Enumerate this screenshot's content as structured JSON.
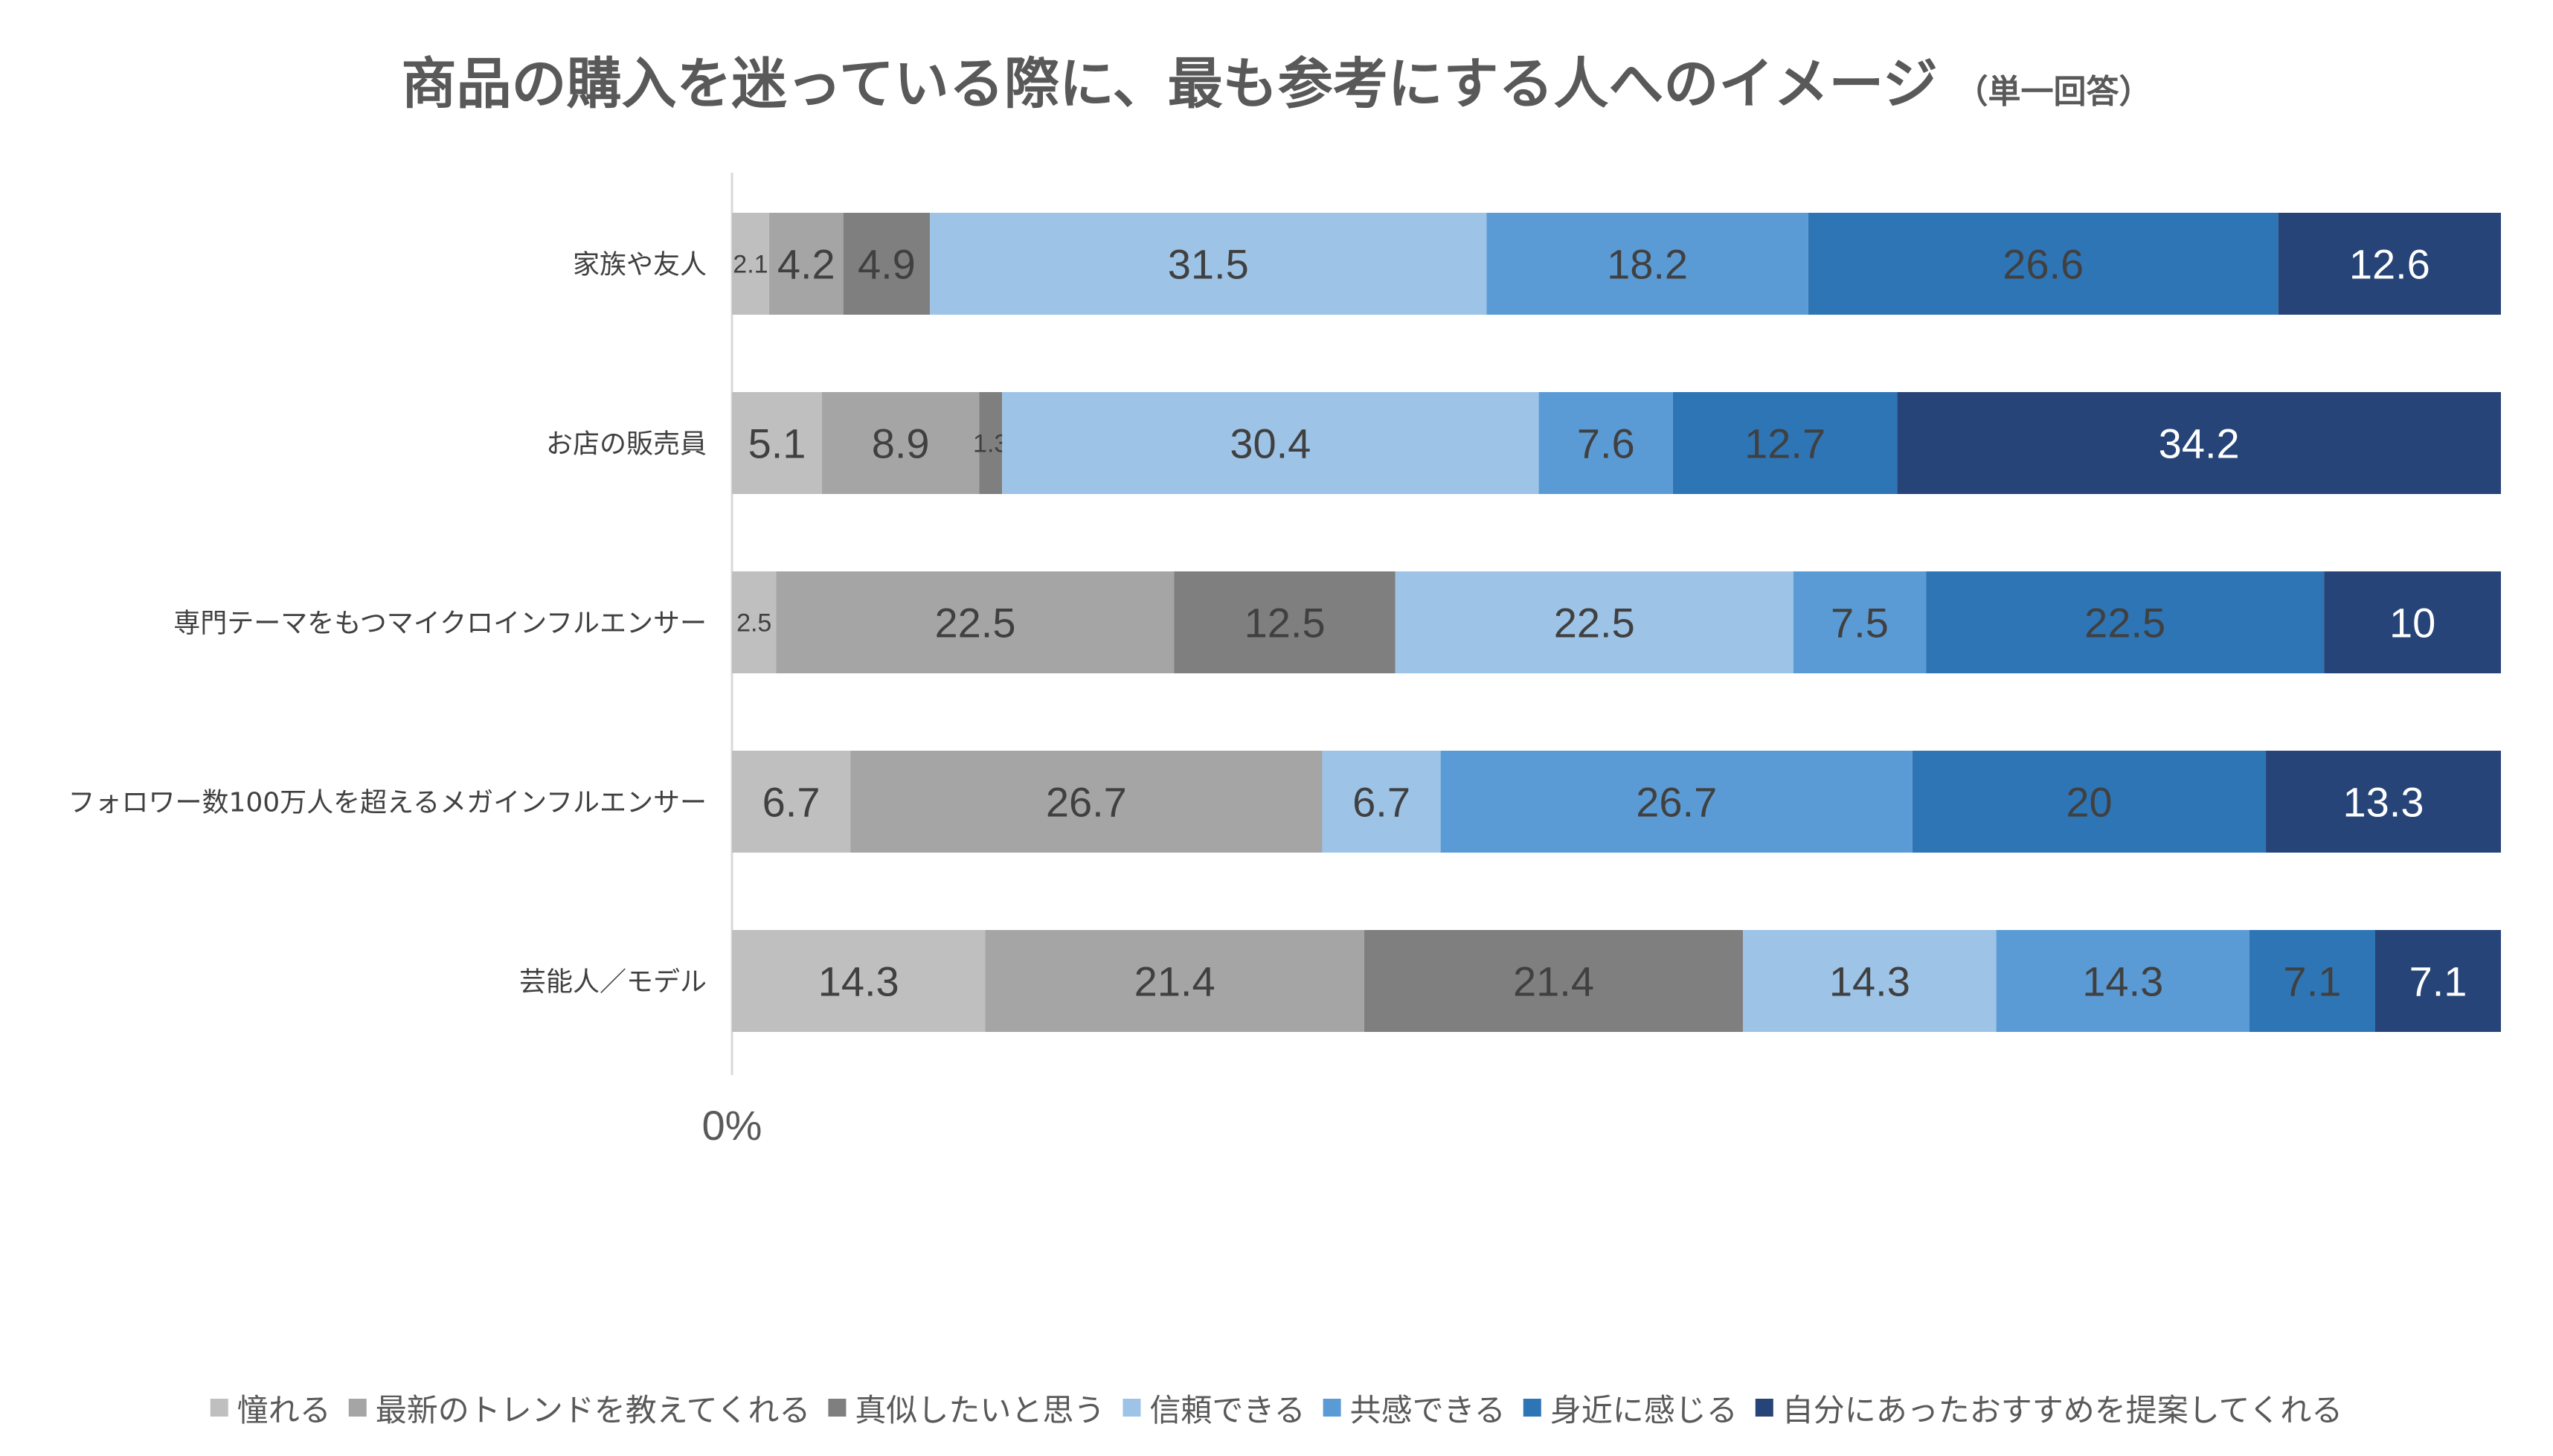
{
  "chart_data": {
    "type": "bar",
    "orientation": "horizontal",
    "stacked": true,
    "title": "商品の購入を迷っている際に、最も参考にする人へのイメージ",
    "subtitle": "（単一回答）",
    "xlabel": "",
    "ylabel": "",
    "xlim": [
      0,
      100
    ],
    "x_ticks": [
      "0%"
    ],
    "grid": false,
    "legend_position": "bottom",
    "categories": [
      "家族や友人",
      "お店の販売員",
      "専門テーマをもつマイクロインフルエンサー",
      "フォロワー数100万人を超えるメガインフルエンサー",
      "芸能人／モデル"
    ],
    "series": [
      {
        "name": "憧れる",
        "color": "#BFBFBF",
        "text_color": "#404040",
        "values": [
          2.1,
          5.1,
          2.5,
          6.7,
          14.3
        ],
        "labels": [
          "2.1",
          "5.1",
          "2.5",
          "6.7",
          "14.3"
        ]
      },
      {
        "name": "最新のトレンドを教えてくれる",
        "color": "#A5A5A5",
        "text_color": "#404040",
        "values": [
          4.2,
          8.9,
          22.5,
          26.7,
          21.4
        ],
        "labels": [
          "4.2",
          "8.9",
          "22.5",
          "26.7",
          "21.4"
        ]
      },
      {
        "name": "真似したいと思う",
        "color": "#7F7F7F",
        "text_color": "#404040",
        "values": [
          4.9,
          1.3,
          12.5,
          0,
          21.4
        ],
        "labels": [
          "4.9",
          "1.3",
          "12.5",
          "",
          "21.4"
        ]
      },
      {
        "name": "信頼できる",
        "color": "#9DC3E6",
        "text_color": "#404040",
        "values": [
          31.5,
          30.4,
          22.5,
          6.7,
          14.3
        ],
        "labels": [
          "31.5",
          "30.4",
          "22.5",
          "6.7",
          "14.3"
        ]
      },
      {
        "name": "共感できる",
        "color": "#5B9BD5",
        "text_color": "#404040",
        "values": [
          18.2,
          7.6,
          7.5,
          26.7,
          14.3
        ],
        "labels": [
          "18.2",
          "7.6",
          "7.5",
          "26.7",
          "14.3"
        ]
      },
      {
        "name": "身近に感じる",
        "color": "#2E75B6",
        "text_color": "#404040",
        "values": [
          26.6,
          12.7,
          22.5,
          20,
          7.1
        ],
        "labels": [
          "26.6",
          "12.7",
          "22.5",
          "20",
          "7.1"
        ]
      },
      {
        "name": "自分にあったおすすめを提案してくれる",
        "color": "#264478",
        "text_color": "#FFFFFF",
        "values": [
          12.6,
          34.2,
          10,
          13.3,
          7.1
        ],
        "labels": [
          "12.6",
          "34.2",
          "10",
          "13.3",
          "7.1"
        ]
      }
    ]
  }
}
